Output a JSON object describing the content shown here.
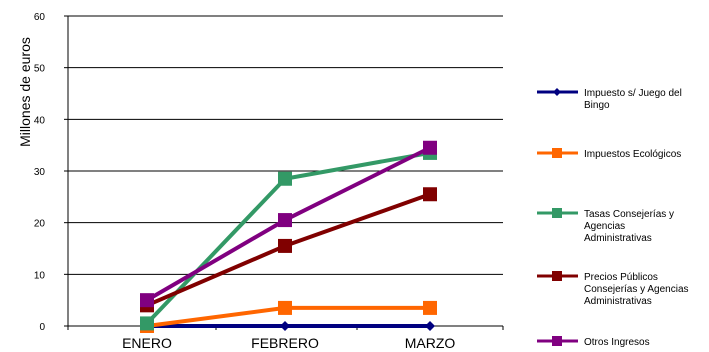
{
  "chart_data": {
    "type": "line",
    "categories": [
      "ENERO",
      "FEBRERO",
      "MARZO"
    ],
    "ylabel": "Millones de euros",
    "ylim": [
      0,
      60
    ],
    "yticks": [
      0,
      10,
      20,
      30,
      40,
      50,
      60
    ],
    "grid": true,
    "legend_position": "right",
    "series": [
      {
        "name": "Impuesto s/ Juego del Bingo",
        "color": "#000080",
        "marker": "diamond",
        "values": [
          0,
          0,
          0
        ]
      },
      {
        "name": "Impuestos Ecológicos",
        "color": "#FF6600",
        "marker": "square",
        "values": [
          0,
          3.5,
          3.5
        ]
      },
      {
        "name": "Tasas Consejerías y Agencias Administrativas",
        "color": "#339966",
        "marker": "square",
        "values": [
          0.5,
          28.5,
          33.5
        ]
      },
      {
        "name": "Precios Públicos Consejerías y Agencias Administrativas",
        "color": "#800000",
        "marker": "square",
        "values": [
          4,
          15.5,
          25.5
        ]
      },
      {
        "name": "Otros Ingresos",
        "color": "#800080",
        "marker": "square",
        "values": [
          5,
          20.5,
          34.5
        ]
      }
    ]
  }
}
